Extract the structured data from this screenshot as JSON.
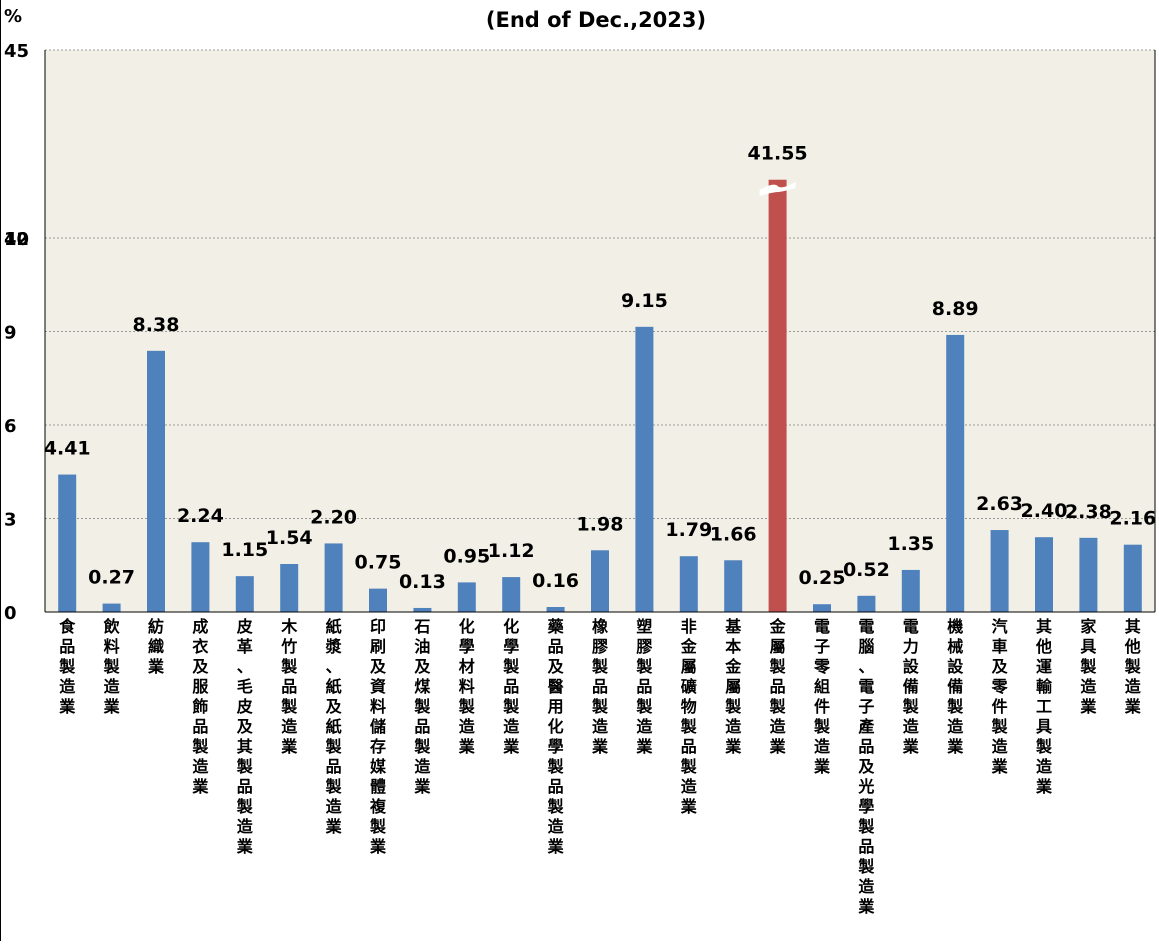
{
  "chart_data": {
    "type": "bar",
    "title": "(End of Dec.,2023)",
    "ylabel": "%",
    "xlabel": "",
    "ylim": [
      0,
      45
    ],
    "y_ticks": [
      "0",
      "3",
      "6",
      "9",
      "12",
      "40",
      "45"
    ],
    "axis_break": "between 12 and 40 on the y-axis; the 41.55 bar is drawn broken",
    "grid": "horizontal dotted gridlines",
    "categories": [
      "食品製造業",
      "飲料製造業",
      "紡織業",
      "成衣及服飾品製造業",
      "皮革、毛皮及其製品製造業",
      "木竹製品製造業",
      "紙漿、紙及紙製品製造業",
      "印刷及資料儲存媒體複製業",
      "石油及煤製品製造業",
      "化學材料製造業",
      "化學製品製造業",
      "藥品及醫用化學製品製造業",
      "橡膠製品製造業",
      "塑膠製品製造業",
      "非金屬礦物製品製造業",
      "基本金屬製造業",
      "金屬製品製造業",
      "電子零組件製造業",
      "電腦、電子產品及光學製品製造業",
      "電力設備製造業",
      "機械設備製造業",
      "汽車及零件製造業",
      "其他運輸工具製造業",
      "家具製造業",
      "其他製造業"
    ],
    "values": [
      4.41,
      0.27,
      8.38,
      2.24,
      1.15,
      1.54,
      2.2,
      0.75,
      0.13,
      0.95,
      1.12,
      0.16,
      1.98,
      9.15,
      1.79,
      1.66,
      41.55,
      0.25,
      0.52,
      1.35,
      8.89,
      2.63,
      2.4,
      2.38,
      2.16
    ],
    "data_labels": [
      "4.41",
      "0.27",
      "8.38",
      "2.24",
      "1.15",
      "1.54",
      "2.20",
      "0.75",
      "0.13",
      "0.95",
      "1.12",
      "0.16",
      "1.98",
      "9.15",
      "1.79",
      "1.66",
      "41.55",
      "0.25",
      "0.52",
      "1.35",
      "8.89",
      "2.63",
      "2.40",
      "2.38",
      "2.16"
    ],
    "highlight_index": 16,
    "colors": {
      "bar": "#4f81bd",
      "highlight": "#c0504d",
      "plot_bg": "#f2f0e6",
      "grid": "#9a9a9a",
      "text": "#000000"
    }
  }
}
